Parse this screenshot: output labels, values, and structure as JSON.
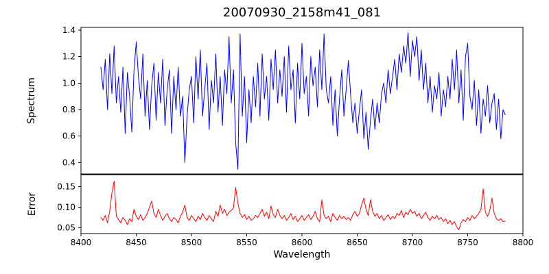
{
  "labels": {
    "xlabel": "Wavelength",
    "ylabel_top": "Spectrum",
    "ylabel_bottom": "Error"
  },
  "colors": {
    "spectrum_line": "#0000ff",
    "error_line": "#ff0000",
    "axis": "#000000",
    "background": "#ffffff"
  },
  "chart_data": [
    {
      "type": "line",
      "title": "20070930_2158m41_081",
      "ylabel": "Spectrum",
      "line_color": "#0000ff",
      "xlim": [
        8400,
        8800
      ],
      "ylim": [
        0.314,
        1.42
      ],
      "yticks": [
        0.4,
        0.6,
        0.8,
        1.0,
        1.2,
        1.4
      ],
      "ytick_labels": [
        "0.4",
        "0.6",
        "0.8",
        "1.0",
        "1.2",
        "1.4"
      ],
      "grid": false,
      "legend": "none",
      "x_start": 8418,
      "x_step": 2,
      "values": [
        1.12,
        0.95,
        1.18,
        0.8,
        1.22,
        0.92,
        1.28,
        0.85,
        1.05,
        0.78,
        1.12,
        0.62,
        1.08,
        0.9,
        0.63,
        1.1,
        1.31,
        1.05,
        0.88,
        1.22,
        0.75,
        1.02,
        0.65,
        0.98,
        1.15,
        0.72,
        1.08,
        0.85,
        1.18,
        0.68,
        0.95,
        1.1,
        0.62,
        1.05,
        0.8,
        1.12,
        0.75,
        0.9,
        0.4,
        0.75,
        0.95,
        1.05,
        0.7,
        1.2,
        0.88,
        1.25,
        0.75,
        0.95,
        1.15,
        0.65,
        1.02,
        0.85,
        1.22,
        0.78,
        1.05,
        0.68,
        1.1,
        0.92,
        1.35,
        0.85,
        1.1,
        0.55,
        0.35,
        1.37,
        0.75,
        1.05,
        0.55,
        0.95,
        0.7,
        1.05,
        0.82,
        1.15,
        0.75,
        1.22,
        0.88,
        1.05,
        0.72,
        1.18,
        0.95,
        1.25,
        0.85,
        1.1,
        0.9,
        1.2,
        0.78,
        1.28,
        0.95,
        1.1,
        0.7,
        1.15,
        0.88,
        1.3,
        0.92,
        1.05,
        0.75,
        1.2,
        0.98,
        1.12,
        0.82,
        1.25,
        0.95,
        1.37,
        0.95,
        0.85,
        1.05,
        0.68,
        0.95,
        0.6,
        0.88,
        1.1,
        0.75,
        0.95,
        1.17,
        0.92,
        0.7,
        0.85,
        0.62,
        0.8,
        0.95,
        0.58,
        0.78,
        0.5,
        0.72,
        0.88,
        0.65,
        0.85,
        0.7,
        0.92,
        1.0,
        0.85,
        1.1,
        0.92,
        1.05,
        1.18,
        0.95,
        1.22,
        1.08,
        1.28,
        1.15,
        1.38,
        1.05,
        1.32,
        1.2,
        1.35,
        1.02,
        1.25,
        0.95,
        1.15,
        0.85,
        1.05,
        0.78,
        0.98,
        0.88,
        1.08,
        0.75,
        0.95,
        0.82,
        1.05,
        0.88,
        1.18,
        0.95,
        1.25,
        0.85,
        1.1,
        0.72,
        1.2,
        1.3,
        0.9,
        0.8,
        1.02,
        0.68,
        0.95,
        0.62,
        0.88,
        0.75,
        0.98,
        0.7,
        0.85,
        0.92,
        0.65,
        0.88,
        0.58,
        0.8,
        0.76
      ]
    },
    {
      "type": "line",
      "ylabel": "Error",
      "xlabel": "Wavelength",
      "line_color": "#ff0000",
      "xlim": [
        8400,
        8800
      ],
      "ylim": [
        0.036,
        0.179
      ],
      "yticks": [
        0.05,
        0.1,
        0.15
      ],
      "ytick_labels": [
        "0.05",
        "0.10",
        "0.15"
      ],
      "xticks": [
        8400,
        8450,
        8500,
        8550,
        8600,
        8650,
        8700,
        8750,
        8800
      ],
      "xtick_labels": [
        "8400",
        "8450",
        "8500",
        "8550",
        "8600",
        "8650",
        "8700",
        "8750",
        "8800"
      ],
      "grid": false,
      "legend": "none",
      "x_start": 8418,
      "x_step": 2,
      "values": [
        0.075,
        0.068,
        0.08,
        0.062,
        0.09,
        0.135,
        0.163,
        0.078,
        0.07,
        0.062,
        0.075,
        0.068,
        0.058,
        0.072,
        0.065,
        0.095,
        0.078,
        0.07,
        0.082,
        0.068,
        0.075,
        0.085,
        0.1,
        0.115,
        0.085,
        0.075,
        0.095,
        0.08,
        0.068,
        0.078,
        0.085,
        0.072,
        0.065,
        0.075,
        0.07,
        0.062,
        0.078,
        0.088,
        0.105,
        0.075,
        0.068,
        0.08,
        0.072,
        0.065,
        0.078,
        0.07,
        0.085,
        0.075,
        0.068,
        0.08,
        0.072,
        0.065,
        0.09,
        0.078,
        0.105,
        0.085,
        0.095,
        0.08,
        0.088,
        0.092,
        0.098,
        0.148,
        0.11,
        0.085,
        0.075,
        0.082,
        0.07,
        0.078,
        0.068,
        0.072,
        0.08,
        0.075,
        0.085,
        0.095,
        0.078,
        0.088,
        0.072,
        0.103,
        0.082,
        0.075,
        0.095,
        0.08,
        0.072,
        0.08,
        0.068,
        0.075,
        0.085,
        0.07,
        0.078,
        0.065,
        0.072,
        0.08,
        0.068,
        0.075,
        0.082,
        0.07,
        0.078,
        0.09,
        0.072,
        0.065,
        0.118,
        0.08,
        0.072,
        0.078,
        0.065,
        0.085,
        0.075,
        0.068,
        0.08,
        0.072,
        0.078,
        0.07,
        0.075,
        0.068,
        0.082,
        0.09,
        0.078,
        0.085,
        0.105,
        0.122,
        0.095,
        0.08,
        0.118,
        0.09,
        0.078,
        0.085,
        0.072,
        0.08,
        0.068,
        0.075,
        0.082,
        0.07,
        0.078,
        0.072,
        0.085,
        0.08,
        0.092,
        0.075,
        0.088,
        0.082,
        0.095,
        0.085,
        0.09,
        0.078,
        0.085,
        0.072,
        0.08,
        0.088,
        0.075,
        0.068,
        0.078,
        0.072,
        0.08,
        0.07,
        0.075,
        0.065,
        0.072,
        0.06,
        0.068,
        0.058,
        0.065,
        0.052,
        0.045,
        0.062,
        0.07,
        0.065,
        0.075,
        0.068,
        0.08,
        0.072,
        0.078,
        0.085,
        0.095,
        0.145,
        0.088,
        0.078,
        0.092,
        0.122,
        0.085,
        0.072,
        0.068,
        0.072,
        0.065,
        0.066
      ]
    }
  ]
}
